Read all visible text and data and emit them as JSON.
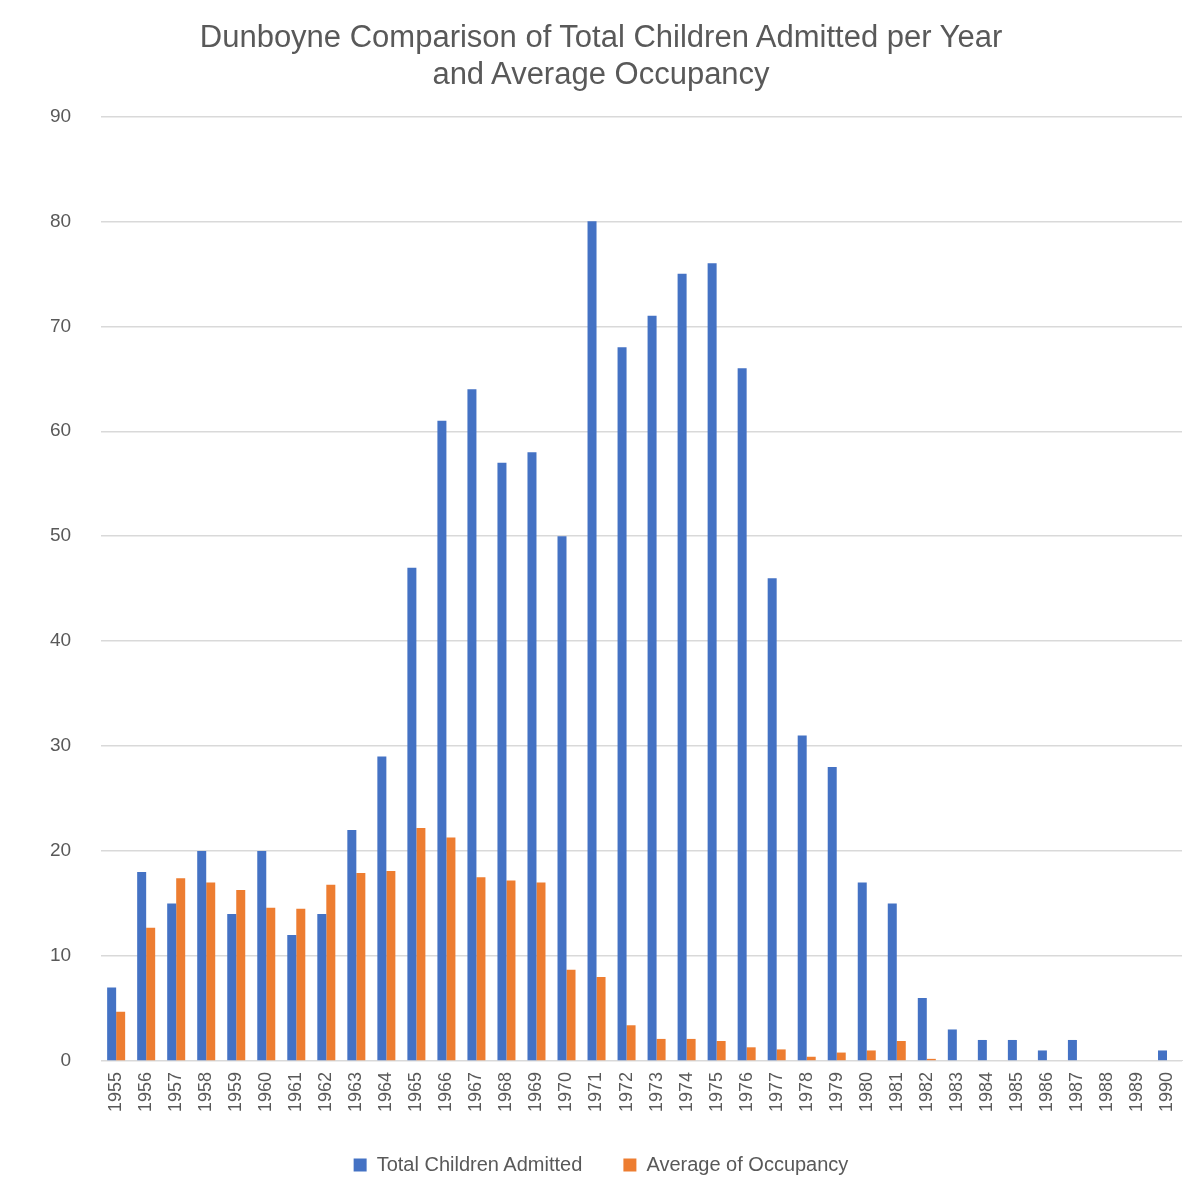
{
  "chart_data": {
    "type": "bar",
    "title": "Dunboyne Comparison of Total Children Admitted per Year and Average Occupancy",
    "categories": [
      "1955",
      "1956",
      "1957",
      "1958",
      "1959",
      "1960",
      "1961",
      "1962",
      "1963",
      "1964",
      "1965",
      "1966",
      "1967",
      "1968",
      "1969",
      "1970",
      "1971",
      "1972",
      "1973",
      "1974",
      "1975",
      "1976",
      "1977",
      "1978",
      "1979",
      "1980",
      "1981",
      "1982",
      "1983",
      "1984",
      "1985",
      "1986",
      "1987",
      "1988",
      "1989",
      "1990"
    ],
    "series": [
      {
        "name": "Total Children Admitted",
        "color": "#4472c4",
        "values": [
          7,
          18,
          15,
          20,
          14,
          20,
          12,
          14,
          22,
          29,
          47,
          61,
          64,
          57,
          58,
          50,
          80,
          68,
          71,
          75,
          76,
          66,
          46,
          31,
          28,
          17,
          15,
          6,
          3,
          2,
          2,
          1,
          2,
          null,
          null,
          1
        ]
      },
      {
        "name": "Average of Occupancy",
        "color": "#ed7d31",
        "values": [
          4.7,
          12.7,
          17.4,
          17.0,
          16.3,
          14.6,
          14.5,
          16.8,
          17.9,
          18.1,
          22.2,
          21.3,
          17.5,
          17.2,
          17.0,
          8.7,
          8.0,
          3.4,
          2.1,
          2.1,
          1.9,
          1.3,
          1.1,
          0.4,
          0.8,
          1.0,
          1.9,
          0.2,
          null,
          null,
          null,
          null,
          null,
          null,
          null,
          null
        ]
      }
    ],
    "ylim": [
      0,
      90
    ],
    "yticks": [
      0,
      10,
      20,
      30,
      40,
      50,
      60,
      70,
      80,
      90
    ],
    "grid": "y",
    "legend": "bottom"
  }
}
